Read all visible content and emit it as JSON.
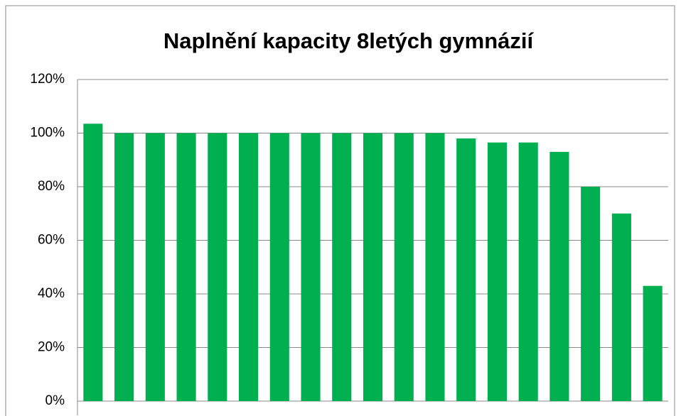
{
  "chart_data": {
    "type": "bar",
    "title": "Naplnění kapacity 8letých gymnázií",
    "categories": [
      null,
      null,
      null,
      null,
      null,
      null,
      null,
      null,
      null,
      null,
      null,
      null,
      null,
      null,
      null,
      null,
      null,
      null,
      null
    ],
    "values": [
      103.5,
      100,
      100,
      100,
      100,
      100,
      100,
      100,
      100,
      100,
      100,
      100,
      98,
      96.5,
      96.5,
      93,
      80,
      70,
      43
    ],
    "color": "#00b050",
    "ylim": [
      0,
      120
    ],
    "yticks": [
      {
        "value": 0,
        "label": "0%"
      },
      {
        "value": 20,
        "label": "20%"
      },
      {
        "value": 40,
        "label": "40%"
      },
      {
        "value": 60,
        "label": "60%"
      },
      {
        "value": 80,
        "label": "80%"
      },
      {
        "value": 100,
        "label": "100%"
      },
      {
        "value": 120,
        "label": "120%"
      }
    ],
    "grid": true
  }
}
